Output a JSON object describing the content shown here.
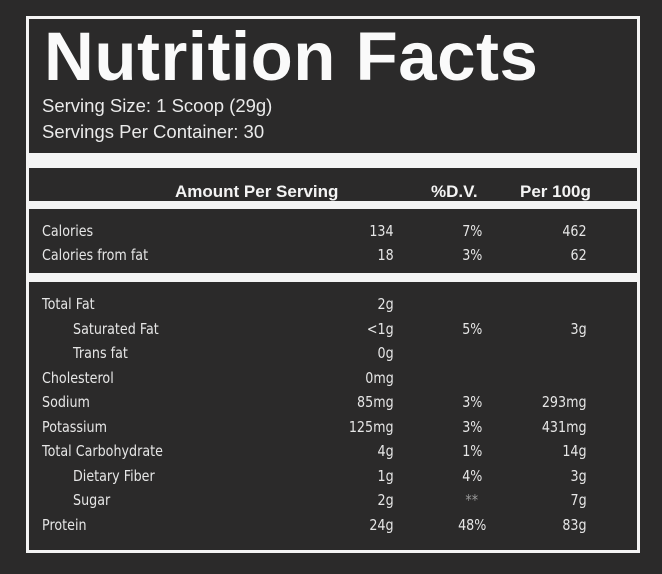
{
  "label": {
    "title": "Nutrition Facts",
    "serving_size": "Serving Size: 1 Scoop (29g)",
    "servings_per_container": "Servings Per Container: 30"
  },
  "columns": {
    "amount": "Amount Per Serving",
    "dv": "%D.V.",
    "per100": "Per 100g"
  },
  "calories_rows": [
    {
      "label": "Calories",
      "amount": "134",
      "dv": "7%",
      "per100": "462"
    },
    {
      "label": "Calories from fat",
      "amount": "18",
      "dv": "3%",
      "per100": "62"
    }
  ],
  "nutrient_rows": [
    {
      "label": "Total Fat",
      "amount": "2g",
      "dv": "",
      "per100": ""
    },
    {
      "label": "Saturated Fat",
      "amount": "<1g",
      "dv": "5%",
      "per100": "3g"
    },
    {
      "label": "Trans fat",
      "amount": "0g",
      "dv": "",
      "per100": ""
    },
    {
      "label": "Cholesterol",
      "amount": "0mg",
      "dv": "",
      "per100": ""
    },
    {
      "label": "Sodium",
      "amount": "85mg",
      "dv": "3%",
      "per100": "293mg"
    },
    {
      "label": "Potassium",
      "amount": "125mg",
      "dv": "3%",
      "per100": "431mg"
    },
    {
      "label": "Total Carbohydrate",
      "amount": "4g",
      "dv": "1%",
      "per100": "14g"
    },
    {
      "label": "Dietary Fiber",
      "amount": "1g",
      "dv": "4%",
      "per100": "3g"
    },
    {
      "label": "Sugar",
      "amount": "2g",
      "dv": "**",
      "per100": "7g"
    },
    {
      "label": "Protein",
      "amount": "24g",
      "dv": "48%",
      "per100": "83g"
    }
  ]
}
